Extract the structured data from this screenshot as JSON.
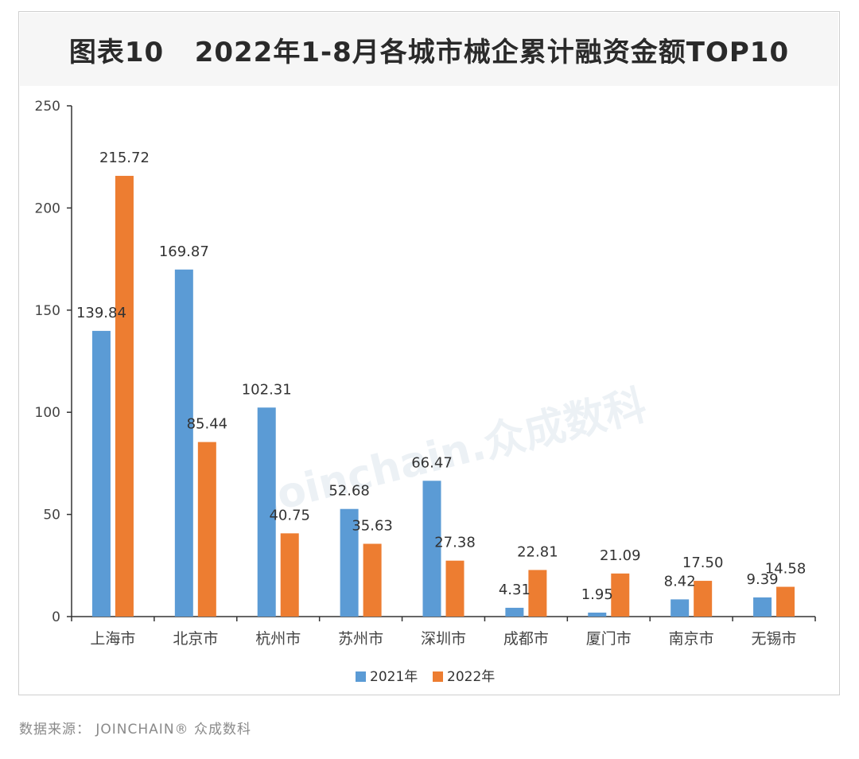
{
  "source_text": "数据来源： JOINCHAIN® 众成数科",
  "watermark": "Joinchain.众成数科",
  "colors": {
    "series_2021": "#5b9bd5",
    "series_2022": "#ed7d31",
    "axis": "#333333"
  },
  "chart_data": {
    "type": "bar",
    "title": "图表10   2022年1-8月各城市械企累计融资金额TOP10",
    "xlabel": "",
    "ylabel": "",
    "ylim": [
      0,
      250
    ],
    "yticks": [
      0,
      50,
      100,
      150,
      200,
      250
    ],
    "grid": false,
    "legend_position": "bottom-center",
    "categories": [
      "上海市",
      "北京市",
      "杭州市",
      "苏州市",
      "深圳市",
      "成都市",
      "厦门市",
      "南京市",
      "无锡市"
    ],
    "series": [
      {
        "name": "2021年",
        "values": [
          139.84,
          169.87,
          102.31,
          52.68,
          66.47,
          4.31,
          1.95,
          8.42,
          9.39
        ],
        "labels": [
          "139.84",
          "169.87",
          "102.31",
          "52.68",
          "66.47",
          "4.31",
          "1.95",
          "8.42",
          "9.39"
        ]
      },
      {
        "name": "2022年",
        "values": [
          215.72,
          85.44,
          40.75,
          35.63,
          27.38,
          22.81,
          21.09,
          17.5,
          14.58
        ],
        "labels": [
          "215.72",
          "85.44",
          "40.75",
          "35.63",
          "27.38",
          "22.81",
          "21.09",
          "17.50",
          "14.58"
        ]
      }
    ]
  }
}
